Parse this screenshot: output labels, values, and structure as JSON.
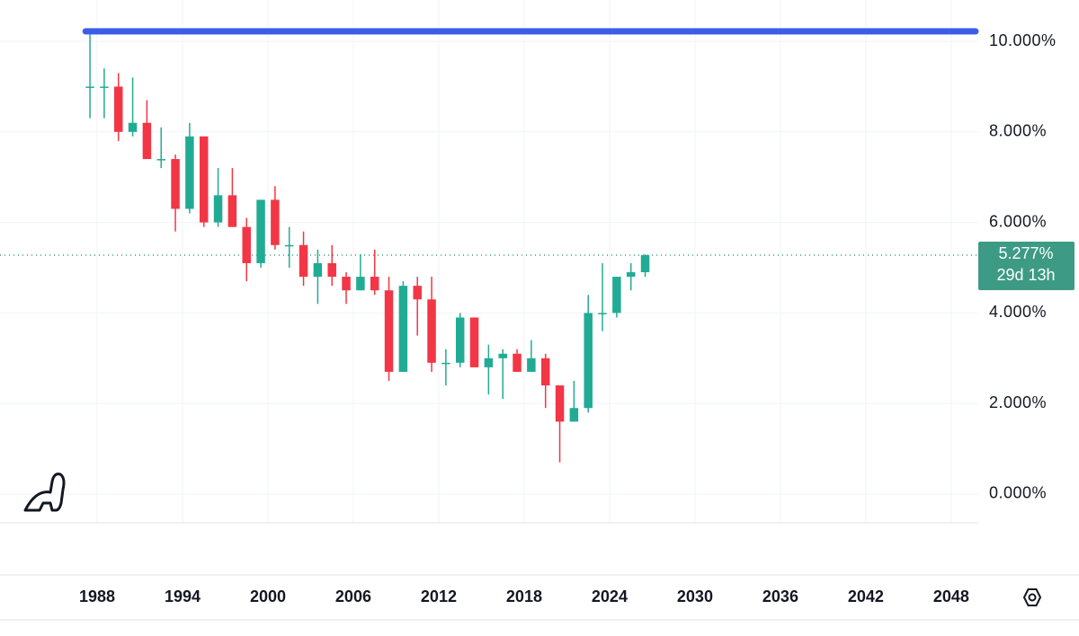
{
  "chart_data": {
    "type": "candlestick",
    "x": [
      1987,
      1988,
      1989,
      1990,
      1991,
      1992,
      1993,
      1994,
      1995,
      1996,
      1997,
      1998,
      1999,
      2000,
      2001,
      2002,
      2003,
      2004,
      2005,
      2006,
      2007,
      2008,
      2009,
      2010,
      2011,
      2012,
      2013,
      2014,
      2015,
      2016,
      2017,
      2018,
      2019,
      2020,
      2021,
      2022,
      2023,
      2024,
      2025,
      2026
    ],
    "open": [
      9.0,
      9.0,
      9.0,
      8.0,
      8.2,
      7.4,
      7.4,
      6.3,
      7.9,
      6.0,
      6.6,
      5.9,
      5.1,
      6.5,
      5.5,
      5.5,
      4.8,
      5.1,
      4.8,
      4.5,
      4.8,
      4.5,
      2.7,
      4.6,
      4.3,
      2.9,
      2.9,
      3.9,
      2.8,
      3.0,
      3.1,
      2.7,
      3.0,
      2.4,
      1.6,
      1.9,
      4.0,
      4.0,
      4.8,
      4.9
    ],
    "high": [
      10.2,
      9.4,
      9.3,
      9.2,
      8.7,
      8.1,
      7.5,
      8.2,
      7.9,
      7.2,
      7.2,
      6.1,
      6.5,
      6.8,
      5.9,
      5.8,
      5.4,
      5.5,
      4.9,
      5.3,
      5.4,
      4.8,
      4.7,
      4.8,
      4.8,
      3.2,
      4.0,
      3.9,
      3.3,
      3.2,
      3.2,
      3.4,
      3.1,
      2.4,
      2.5,
      4.4,
      5.1,
      4.8,
      5.1,
      5.3
    ],
    "low": [
      8.3,
      8.3,
      7.8,
      7.9,
      7.4,
      7.2,
      5.8,
      6.2,
      5.9,
      5.9,
      5.9,
      4.7,
      5.0,
      5.4,
      5.0,
      4.6,
      4.2,
      4.6,
      4.2,
      4.5,
      4.4,
      2.5,
      2.7,
      3.5,
      2.7,
      2.4,
      2.8,
      2.8,
      2.2,
      2.1,
      2.7,
      2.7,
      1.9,
      0.7,
      1.6,
      1.8,
      3.6,
      3.9,
      4.5,
      4.8
    ],
    "close": [
      9.0,
      9.0,
      8.0,
      8.2,
      7.4,
      7.4,
      6.3,
      7.9,
      6.0,
      6.6,
      5.9,
      5.1,
      6.5,
      5.5,
      5.5,
      4.8,
      5.1,
      4.8,
      4.5,
      4.8,
      4.5,
      2.7,
      4.6,
      4.3,
      2.9,
      2.9,
      3.9,
      2.8,
      3.0,
      3.1,
      2.7,
      3.0,
      2.4,
      1.6,
      1.9,
      4.0,
      4.0,
      4.8,
      4.9,
      5.277
    ],
    "up_color": "#22ab94",
    "down_color": "#f23645",
    "xlim": [
      1981.18,
      2049.9
    ],
    "xticks": [
      1988,
      1994,
      2000,
      2006,
      2012,
      2018,
      2024,
      2030,
      2036,
      2042,
      2048
    ],
    "ylim": [
      -0.635,
      10.913
    ],
    "yticks": [
      {
        "value": 0,
        "label": "0.000%"
      },
      {
        "value": 2,
        "label": "2.000%"
      },
      {
        "value": 4,
        "label": "4.000%"
      },
      {
        "value": 6,
        "label": "6.000%"
      },
      {
        "value": 8,
        "label": "8.000%"
      },
      {
        "value": 10,
        "label": "10.000%"
      }
    ],
    "grid": true,
    "hline": {
      "value": 10.22,
      "color": "#3a5ee8"
    },
    "last_price": {
      "value": 5.277,
      "label": "5.277%",
      "countdown": "29d 13h",
      "color": "#3d9a84"
    }
  }
}
